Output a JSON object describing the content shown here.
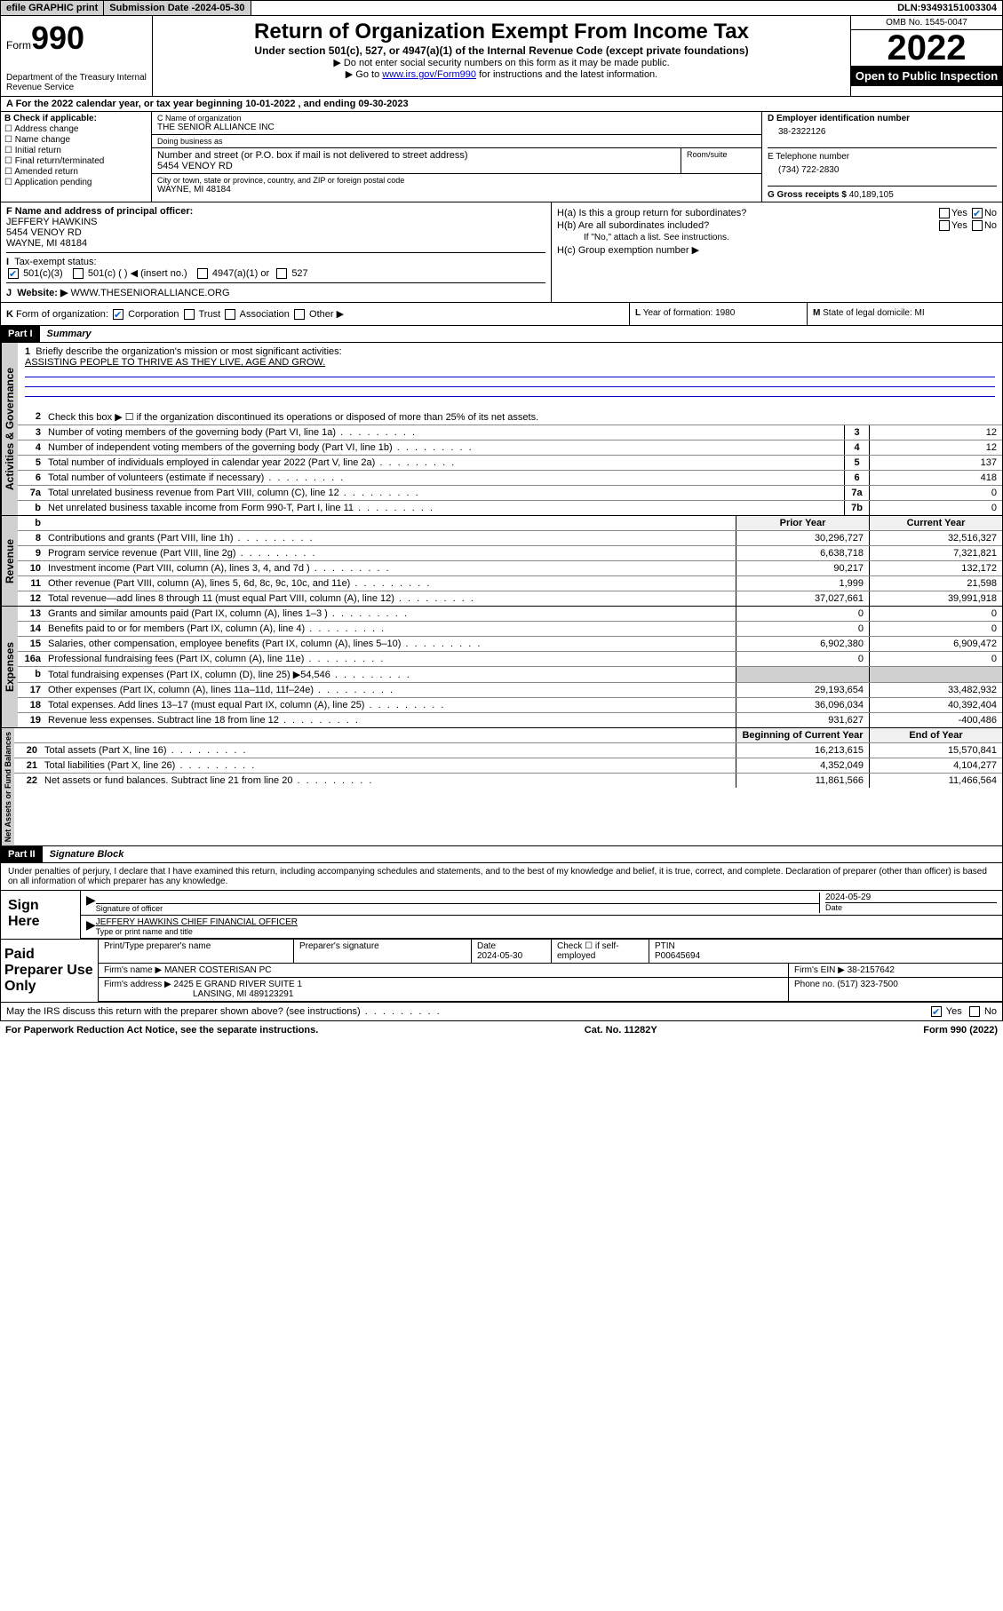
{
  "topbar": {
    "efile": "efile GRAPHIC print",
    "subdate_lbl": "Submission Date - ",
    "subdate": "2024-05-30",
    "dln_lbl": "DLN: ",
    "dln": "93493151003304"
  },
  "header": {
    "form_word": "Form",
    "form_num": "990",
    "dept": "Department of the Treasury\nInternal Revenue Service",
    "title": "Return of Organization Exempt From Income Tax",
    "sub": "Under section 501(c), 527, or 4947(a)(1) of the Internal Revenue Code (except private foundations)",
    "note1": "▶ Do not enter social security numbers on this form as it may be made public.",
    "note2_pre": "▶ Go to ",
    "note2_link": "www.irs.gov/Form990",
    "note2_post": " for instructions and the latest information.",
    "omb": "OMB No. 1545-0047",
    "year": "2022",
    "open": "Open to Public Inspection"
  },
  "rowA": "A For the 2022 calendar year, or tax year beginning 10-01-2022    , and ending 09-30-2023",
  "colB": {
    "lbl": "B Check if applicable:",
    "opts": [
      "Address change",
      "Name change",
      "Initial return",
      "Final return/terminated",
      "Amended return",
      "Application pending"
    ]
  },
  "colC": {
    "name_lbl": "C Name of organization",
    "name": "THE SENIOR ALLIANCE INC",
    "dba_lbl": "Doing business as",
    "dba": "",
    "addr_lbl": "Number and street (or P.O. box if mail is not delivered to street address)",
    "room_lbl": "Room/suite",
    "addr": "5454 VENOY RD",
    "city_lbl": "City or town, state or province, country, and ZIP or foreign postal code",
    "city": "WAYNE, MI  48184"
  },
  "colD": {
    "ein_lbl": "D Employer identification number",
    "ein": "38-2322126",
    "tel_lbl": "E Telephone number",
    "tel": "(734) 722-2830",
    "gross_lbl": "G Gross receipts $ ",
    "gross": "40,189,105"
  },
  "colF": {
    "lbl": "F  Name and address of principal officer:",
    "name": "JEFFERY HAWKINS",
    "addr1": "5454 VENOY RD",
    "addr2": "WAYNE, MI  48184"
  },
  "colH": {
    "ha": "H(a)  Is this a group return for subordinates?",
    "hb": "H(b)  Are all subordinates included?",
    "hb_note": "If \"No,\" attach a list. See instructions.",
    "hc": "H(c)  Group exemption number ▶",
    "yes": "Yes",
    "no": "No"
  },
  "rowI": {
    "lbl": "I",
    "txt": "Tax-exempt status:",
    "o1": "501(c)(3)",
    "o2": "501(c) (  ) ◀ (insert no.)",
    "o3": "4947(a)(1) or",
    "o4": "527"
  },
  "rowJ": {
    "lbl": "J",
    "txt": "Website: ▶ ",
    "val": "WWW.THESENIORALLIANCE.ORG"
  },
  "rowK": {
    "lbl": "K",
    "txt": "Form of organization:",
    "o1": "Corporation",
    "o2": "Trust",
    "o3": "Association",
    "o4": "Other ▶"
  },
  "rowL": {
    "lbl": "L",
    "txt": "Year of formation: ",
    "val": "1980"
  },
  "rowM": {
    "lbl": "M",
    "txt": "State of legal domicile: ",
    "val": "MI"
  },
  "part1": {
    "hdr": "Part I",
    "title": "Summary",
    "tab_ag": "Activities & Governance",
    "tab_rev": "Revenue",
    "tab_exp": "Expenses",
    "tab_net": "Net Assets or Fund Balances",
    "line1_lbl": "Briefly describe the organization's mission or most significant activities:",
    "line1_val": "ASSISTING PEOPLE TO THRIVE AS THEY LIVE, AGE AND GROW.",
    "line2": "Check this box ▶ ☐  if the organization discontinued its operations or disposed of more than 25% of its net assets.",
    "prior_hdr": "Prior Year",
    "curr_hdr": "Current Year",
    "begin_hdr": "Beginning of Current Year",
    "end_hdr": "End of Year",
    "lines_ag": [
      {
        "n": "3",
        "t": "Number of voting members of the governing body (Part VI, line 1a)",
        "b": "3",
        "v": "12"
      },
      {
        "n": "4",
        "t": "Number of independent voting members of the governing body (Part VI, line 1b)",
        "b": "4",
        "v": "12"
      },
      {
        "n": "5",
        "t": "Total number of individuals employed in calendar year 2022 (Part V, line 2a)",
        "b": "5",
        "v": "137"
      },
      {
        "n": "6",
        "t": "Total number of volunteers (estimate if necessary)",
        "b": "6",
        "v": "418"
      },
      {
        "n": "7a",
        "t": "Total unrelated business revenue from Part VIII, column (C), line 12",
        "b": "7a",
        "v": "0"
      },
      {
        "n": "b",
        "t": "Net unrelated business taxable income from Form 990-T, Part I, line 11",
        "b": "7b",
        "v": "0"
      }
    ],
    "lines_rev": [
      {
        "n": "8",
        "t": "Contributions and grants (Part VIII, line 1h)",
        "p": "30,296,727",
        "c": "32,516,327"
      },
      {
        "n": "9",
        "t": "Program service revenue (Part VIII, line 2g)",
        "p": "6,638,718",
        "c": "7,321,821"
      },
      {
        "n": "10",
        "t": "Investment income (Part VIII, column (A), lines 3, 4, and 7d )",
        "p": "90,217",
        "c": "132,172"
      },
      {
        "n": "11",
        "t": "Other revenue (Part VIII, column (A), lines 5, 6d, 8c, 9c, 10c, and 11e)",
        "p": "1,999",
        "c": "21,598"
      },
      {
        "n": "12",
        "t": "Total revenue—add lines 8 through 11 (must equal Part VIII, column (A), line 12)",
        "p": "37,027,661",
        "c": "39,991,918"
      }
    ],
    "lines_exp": [
      {
        "n": "13",
        "t": "Grants and similar amounts paid (Part IX, column (A), lines 1–3 )",
        "p": "0",
        "c": "0"
      },
      {
        "n": "14",
        "t": "Benefits paid to or for members (Part IX, column (A), line 4)",
        "p": "0",
        "c": "0"
      },
      {
        "n": "15",
        "t": "Salaries, other compensation, employee benefits (Part IX, column (A), lines 5–10)",
        "p": "6,902,380",
        "c": "6,909,472"
      },
      {
        "n": "16a",
        "t": "Professional fundraising fees (Part IX, column (A), line 11e)",
        "p": "0",
        "c": "0"
      },
      {
        "n": "b",
        "t": "Total fundraising expenses (Part IX, column (D), line 25) ▶54,546",
        "p": "",
        "c": "",
        "grey": true
      },
      {
        "n": "17",
        "t": "Other expenses (Part IX, column (A), lines 11a–11d, 11f–24e)",
        "p": "29,193,654",
        "c": "33,482,932"
      },
      {
        "n": "18",
        "t": "Total expenses. Add lines 13–17 (must equal Part IX, column (A), line 25)",
        "p": "36,096,034",
        "c": "40,392,404"
      },
      {
        "n": "19",
        "t": "Revenue less expenses. Subtract line 18 from line 12",
        "p": "931,627",
        "c": "-400,486"
      }
    ],
    "lines_net": [
      {
        "n": "20",
        "t": "Total assets (Part X, line 16)",
        "p": "16,213,615",
        "c": "15,570,841"
      },
      {
        "n": "21",
        "t": "Total liabilities (Part X, line 26)",
        "p": "4,352,049",
        "c": "4,104,277"
      },
      {
        "n": "22",
        "t": "Net assets or fund balances. Subtract line 21 from line 20",
        "p": "11,861,566",
        "c": "11,466,564"
      }
    ]
  },
  "part2": {
    "hdr": "Part II",
    "title": "Signature Block",
    "decl": "Under penalties of perjury, I declare that I have examined this return, including accompanying schedules and statements, and to the best of my knowledge and belief, it is true, correct, and complete. Declaration of preparer (other than officer) is based on all information of which preparer has any knowledge.",
    "sign_lbl": "Sign Here",
    "sig_officer_lbl": "Signature of officer",
    "sig_date_lbl": "Date",
    "sig_date": "2024-05-29",
    "sig_name": "JEFFERY HAWKINS  CHIEF FINANCIAL OFFICER",
    "sig_name_lbl": "Type or print name and title",
    "paid_lbl": "Paid Preparer Use Only",
    "p_name_lbl": "Print/Type preparer's name",
    "p_sig_lbl": "Preparer's signature",
    "p_date_lbl": "Date",
    "p_date": "2024-05-30",
    "p_check_lbl": "Check ☐ if self-employed",
    "p_ptin_lbl": "PTIN",
    "p_ptin": "P00645694",
    "p_firm_lbl": "Firm's name    ▶ ",
    "p_firm": "MANER COSTERISAN PC",
    "p_ein_lbl": "Firm's EIN ▶ ",
    "p_ein": "38-2157642",
    "p_addr_lbl": "Firm's address ▶ ",
    "p_addr1": "2425 E GRAND RIVER SUITE 1",
    "p_addr2": "LANSING, MI  489123291",
    "p_phone_lbl": "Phone no. ",
    "p_phone": "(517) 323-7500",
    "discuss": "May the IRS discuss this return with the preparer shown above? (see instructions)",
    "yes": "Yes",
    "no": "No"
  },
  "footer": {
    "pra": "For Paperwork Reduction Act Notice, see the separate instructions.",
    "cat": "Cat. No. 11282Y",
    "form": "Form 990 (2022)"
  }
}
